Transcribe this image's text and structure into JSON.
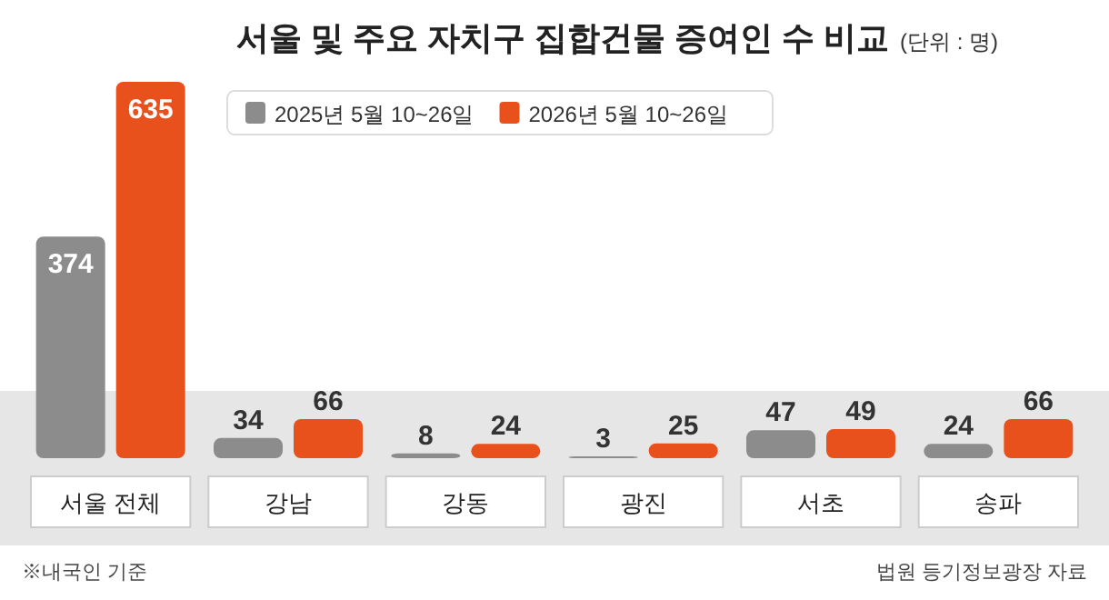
{
  "chart_data": {
    "type": "bar",
    "title": "서울 및 주요 자치구 집합건물 증여인 수 비교",
    "subtitle": "(단위 : 명)",
    "categories": [
      "서울 전체",
      "강남",
      "강동",
      "광진",
      "서초",
      "송파"
    ],
    "series": [
      {
        "name": "2025년 5월 10~26일",
        "color": "#8c8c8c",
        "values": [
          374,
          34,
          8,
          3,
          47,
          24
        ]
      },
      {
        "name": "2026년 5월 10~26일",
        "color": "#e8501c",
        "values": [
          635,
          66,
          24,
          25,
          49,
          66
        ]
      }
    ],
    "data_labels": true,
    "legend": "top",
    "annotations": [
      "※내국인 기준",
      "법원 등기정보광장 자료"
    ]
  }
}
